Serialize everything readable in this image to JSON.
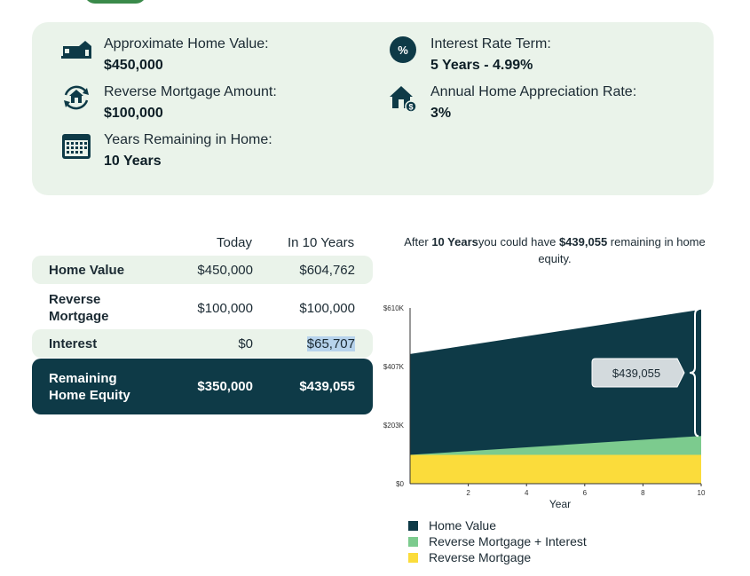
{
  "summary": {
    "home_value_label": "Approximate Home Value:",
    "home_value": "$450,000",
    "rm_amount_label": "Reverse Mortgage Amount:",
    "rm_amount": "$100,000",
    "years_label": "Years Remaining in Home:",
    "years": "10 Years",
    "rate_label": "Interest Rate Term:",
    "rate": "5 Years - 4.99%",
    "apprec_label": "Annual Home Appreciation Rate:",
    "apprec": "3%",
    "pct_symbol": "%"
  },
  "table": {
    "col_today": "Today",
    "col_future": "In 10 Years",
    "rows": [
      {
        "label": "Home Value",
        "today": "$450,000",
        "future": "$604,762"
      },
      {
        "label": "Reverse Mortgage",
        "today": "$100,000",
        "future": "$100,000"
      },
      {
        "label": "Interest",
        "today": "$0",
        "future": "$65,707"
      },
      {
        "label": "Remaining Home Equity",
        "today": "$350,000",
        "future": "$439,055"
      }
    ]
  },
  "caption": {
    "pre": "After ",
    "years": "10 Years",
    "mid": "you could have ",
    "amount": "$439,055",
    "post": " remaining in home equity."
  },
  "colors": {
    "dark": "#0e3a47",
    "green": "#7ccb8e",
    "yellow": "#fbdc3b",
    "panel": "#eaf3ea"
  },
  "chart_data": {
    "type": "area",
    "xlabel": "Year",
    "ylabel": "",
    "xlim": [
      0,
      10
    ],
    "ylim": [
      0,
      610000
    ],
    "x_ticks": [
      2,
      4,
      6,
      8,
      10
    ],
    "y_ticks": [
      {
        "value": 0,
        "label": "$0"
      },
      {
        "value": 203000,
        "label": "$203K"
      },
      {
        "value": 407000,
        "label": "$407K"
      },
      {
        "value": 610000,
        "label": "$610K"
      }
    ],
    "x": [
      0,
      10
    ],
    "series": [
      {
        "name": "Home Value",
        "color": "#0e3a47",
        "values": [
          450000,
          604762
        ]
      },
      {
        "name": "Reverse Mortgage + Interest",
        "color": "#7ccb8e",
        "values": [
          100000,
          165707
        ]
      },
      {
        "name": "Reverse Mortgage",
        "color": "#fbdc3b",
        "values": [
          100000,
          100000
        ]
      }
    ],
    "annotation": "$439,055",
    "legend_position": "bottom-left"
  }
}
